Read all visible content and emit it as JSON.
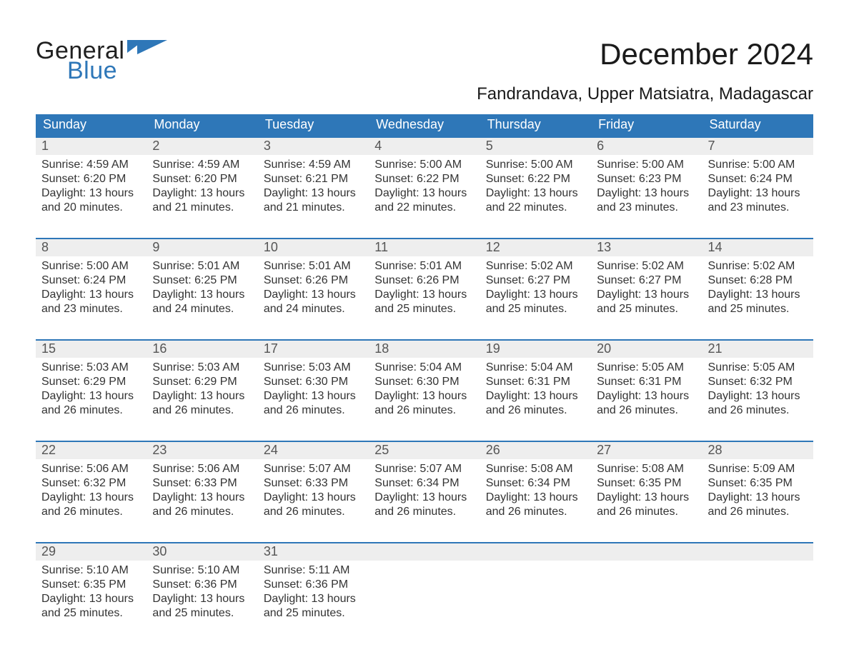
{
  "brand": {
    "word1": "General",
    "word2": "Blue",
    "triangle_color": "#2e77b8"
  },
  "title": {
    "month": "December 2024",
    "location": "Fandrandava, Upper Matsiatra, Madagascar"
  },
  "colors": {
    "header_row_bg": "#2e77b8",
    "header_row_text": "#ffffff",
    "daynum_bg": "#eeeeee",
    "daynum_text": "#555555",
    "body_text": "#333333",
    "rule_color": "#2e77b8",
    "page_bg": "#ffffff"
  },
  "weekdays": [
    "Sunday",
    "Monday",
    "Tuesday",
    "Wednesday",
    "Thursday",
    "Friday",
    "Saturday"
  ],
  "weeks": [
    [
      {
        "n": "1",
        "sunrise": "Sunrise: 4:59 AM",
        "sunset": "Sunset: 6:20 PM",
        "dl1": "Daylight: 13 hours",
        "dl2": "and 20 minutes."
      },
      {
        "n": "2",
        "sunrise": "Sunrise: 4:59 AM",
        "sunset": "Sunset: 6:20 PM",
        "dl1": "Daylight: 13 hours",
        "dl2": "and 21 minutes."
      },
      {
        "n": "3",
        "sunrise": "Sunrise: 4:59 AM",
        "sunset": "Sunset: 6:21 PM",
        "dl1": "Daylight: 13 hours",
        "dl2": "and 21 minutes."
      },
      {
        "n": "4",
        "sunrise": "Sunrise: 5:00 AM",
        "sunset": "Sunset: 6:22 PM",
        "dl1": "Daylight: 13 hours",
        "dl2": "and 22 minutes."
      },
      {
        "n": "5",
        "sunrise": "Sunrise: 5:00 AM",
        "sunset": "Sunset: 6:22 PM",
        "dl1": "Daylight: 13 hours",
        "dl2": "and 22 minutes."
      },
      {
        "n": "6",
        "sunrise": "Sunrise: 5:00 AM",
        "sunset": "Sunset: 6:23 PM",
        "dl1": "Daylight: 13 hours",
        "dl2": "and 23 minutes."
      },
      {
        "n": "7",
        "sunrise": "Sunrise: 5:00 AM",
        "sunset": "Sunset: 6:24 PM",
        "dl1": "Daylight: 13 hours",
        "dl2": "and 23 minutes."
      }
    ],
    [
      {
        "n": "8",
        "sunrise": "Sunrise: 5:00 AM",
        "sunset": "Sunset: 6:24 PM",
        "dl1": "Daylight: 13 hours",
        "dl2": "and 23 minutes."
      },
      {
        "n": "9",
        "sunrise": "Sunrise: 5:01 AM",
        "sunset": "Sunset: 6:25 PM",
        "dl1": "Daylight: 13 hours",
        "dl2": "and 24 minutes."
      },
      {
        "n": "10",
        "sunrise": "Sunrise: 5:01 AM",
        "sunset": "Sunset: 6:26 PM",
        "dl1": "Daylight: 13 hours",
        "dl2": "and 24 minutes."
      },
      {
        "n": "11",
        "sunrise": "Sunrise: 5:01 AM",
        "sunset": "Sunset: 6:26 PM",
        "dl1": "Daylight: 13 hours",
        "dl2": "and 25 minutes."
      },
      {
        "n": "12",
        "sunrise": "Sunrise: 5:02 AM",
        "sunset": "Sunset: 6:27 PM",
        "dl1": "Daylight: 13 hours",
        "dl2": "and 25 minutes."
      },
      {
        "n": "13",
        "sunrise": "Sunrise: 5:02 AM",
        "sunset": "Sunset: 6:27 PM",
        "dl1": "Daylight: 13 hours",
        "dl2": "and 25 minutes."
      },
      {
        "n": "14",
        "sunrise": "Sunrise: 5:02 AM",
        "sunset": "Sunset: 6:28 PM",
        "dl1": "Daylight: 13 hours",
        "dl2": "and 25 minutes."
      }
    ],
    [
      {
        "n": "15",
        "sunrise": "Sunrise: 5:03 AM",
        "sunset": "Sunset: 6:29 PM",
        "dl1": "Daylight: 13 hours",
        "dl2": "and 26 minutes."
      },
      {
        "n": "16",
        "sunrise": "Sunrise: 5:03 AM",
        "sunset": "Sunset: 6:29 PM",
        "dl1": "Daylight: 13 hours",
        "dl2": "and 26 minutes."
      },
      {
        "n": "17",
        "sunrise": "Sunrise: 5:03 AM",
        "sunset": "Sunset: 6:30 PM",
        "dl1": "Daylight: 13 hours",
        "dl2": "and 26 minutes."
      },
      {
        "n": "18",
        "sunrise": "Sunrise: 5:04 AM",
        "sunset": "Sunset: 6:30 PM",
        "dl1": "Daylight: 13 hours",
        "dl2": "and 26 minutes."
      },
      {
        "n": "19",
        "sunrise": "Sunrise: 5:04 AM",
        "sunset": "Sunset: 6:31 PM",
        "dl1": "Daylight: 13 hours",
        "dl2": "and 26 minutes."
      },
      {
        "n": "20",
        "sunrise": "Sunrise: 5:05 AM",
        "sunset": "Sunset: 6:31 PM",
        "dl1": "Daylight: 13 hours",
        "dl2": "and 26 minutes."
      },
      {
        "n": "21",
        "sunrise": "Sunrise: 5:05 AM",
        "sunset": "Sunset: 6:32 PM",
        "dl1": "Daylight: 13 hours",
        "dl2": "and 26 minutes."
      }
    ],
    [
      {
        "n": "22",
        "sunrise": "Sunrise: 5:06 AM",
        "sunset": "Sunset: 6:32 PM",
        "dl1": "Daylight: 13 hours",
        "dl2": "and 26 minutes."
      },
      {
        "n": "23",
        "sunrise": "Sunrise: 5:06 AM",
        "sunset": "Sunset: 6:33 PM",
        "dl1": "Daylight: 13 hours",
        "dl2": "and 26 minutes."
      },
      {
        "n": "24",
        "sunrise": "Sunrise: 5:07 AM",
        "sunset": "Sunset: 6:33 PM",
        "dl1": "Daylight: 13 hours",
        "dl2": "and 26 minutes."
      },
      {
        "n": "25",
        "sunrise": "Sunrise: 5:07 AM",
        "sunset": "Sunset: 6:34 PM",
        "dl1": "Daylight: 13 hours",
        "dl2": "and 26 minutes."
      },
      {
        "n": "26",
        "sunrise": "Sunrise: 5:08 AM",
        "sunset": "Sunset: 6:34 PM",
        "dl1": "Daylight: 13 hours",
        "dl2": "and 26 minutes."
      },
      {
        "n": "27",
        "sunrise": "Sunrise: 5:08 AM",
        "sunset": "Sunset: 6:35 PM",
        "dl1": "Daylight: 13 hours",
        "dl2": "and 26 minutes."
      },
      {
        "n": "28",
        "sunrise": "Sunrise: 5:09 AM",
        "sunset": "Sunset: 6:35 PM",
        "dl1": "Daylight: 13 hours",
        "dl2": "and 26 minutes."
      }
    ],
    [
      {
        "n": "29",
        "sunrise": "Sunrise: 5:10 AM",
        "sunset": "Sunset: 6:35 PM",
        "dl1": "Daylight: 13 hours",
        "dl2": "and 25 minutes."
      },
      {
        "n": "30",
        "sunrise": "Sunrise: 5:10 AM",
        "sunset": "Sunset: 6:36 PM",
        "dl1": "Daylight: 13 hours",
        "dl2": "and 25 minutes."
      },
      {
        "n": "31",
        "sunrise": "Sunrise: 5:11 AM",
        "sunset": "Sunset: 6:36 PM",
        "dl1": "Daylight: 13 hours",
        "dl2": "and 25 minutes."
      },
      null,
      null,
      null,
      null
    ]
  ]
}
